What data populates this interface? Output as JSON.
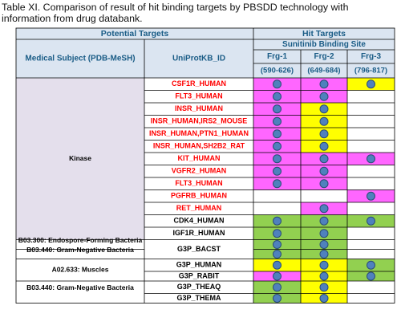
{
  "caption": "Table XI. Comparison of result of hit binding targets by PBSDD technology with information from drug databank.",
  "headers": {
    "potential_targets": "Potential Targets",
    "hit_targets": "Hit Targets",
    "medical_subject": "Medical Subject (PDB-MeSH)",
    "uniprot_id": "UniProtKB_ID",
    "binding_site": "Sunitinib Binding Site",
    "fragments": [
      {
        "name": "Frg-1",
        "range": "(590-626)"
      },
      {
        "name": "Frg-2",
        "range": "(649-684)"
      },
      {
        "name": "Frg-3",
        "range": "(796-817)"
      }
    ]
  },
  "colors": {
    "header_bg": "#dbe5f1",
    "kinase_group_bg": "#e4dfec",
    "red_text": "#ff0000",
    "black_text": "#000000",
    "magenta": "#ff66ff",
    "yellow": "#ffff00",
    "green": "#92d050",
    "blue_dot": "#4f81bd",
    "header_text": "#1a5c86"
  },
  "groups": [
    {
      "label": "Kinase",
      "row_span": 13,
      "shaded": true
    },
    {
      "label": "B03.300: Endospore-Forming Bacteria",
      "row_span": 1,
      "shaded": false
    },
    {
      "label": "B03.440: Gram-Negative Bacteria",
      "row_span": 1,
      "shaded": false
    },
    {
      "label": "A02.633: Muscles",
      "row_span": 2,
      "shaded": false
    },
    {
      "label": "B03.440: Gram-Negative Bacteria",
      "row_span": 2,
      "shaded": false
    }
  ],
  "rows": [
    {
      "id": "CSF1R_HUMAN",
      "text_color": "red",
      "frg": [
        {
          "fill": "magenta",
          "dot": true
        },
        {
          "fill": "magenta",
          "dot": true
        },
        {
          "fill": "yellow",
          "dot": true
        }
      ]
    },
    {
      "id": "FLT3_HUMAN",
      "text_color": "red",
      "frg": [
        {
          "fill": "magenta",
          "dot": true
        },
        {
          "fill": "magenta",
          "dot": true
        },
        {
          "fill": "none",
          "dot": false
        }
      ]
    },
    {
      "id": "INSR_HUMAN",
      "text_color": "red",
      "frg": [
        {
          "fill": "magenta",
          "dot": true
        },
        {
          "fill": "yellow",
          "dot": true
        },
        {
          "fill": "none",
          "dot": false
        }
      ]
    },
    {
      "id": "INSR_HUMAN,IRS2_MOUSE",
      "text_color": "red",
      "frg": [
        {
          "fill": "magenta",
          "dot": true
        },
        {
          "fill": "yellow",
          "dot": true
        },
        {
          "fill": "none",
          "dot": false
        }
      ]
    },
    {
      "id": "INSR_HUMAN,PTN1_HUMAN",
      "text_color": "red",
      "frg": [
        {
          "fill": "magenta",
          "dot": true
        },
        {
          "fill": "yellow",
          "dot": true
        },
        {
          "fill": "none",
          "dot": false
        }
      ]
    },
    {
      "id": "INSR_HUMAN,SH2B2_RAT",
      "text_color": "red",
      "frg": [
        {
          "fill": "magenta",
          "dot": true
        },
        {
          "fill": "yellow",
          "dot": true
        },
        {
          "fill": "none",
          "dot": false
        }
      ]
    },
    {
      "id": "KIT_HUMAN",
      "text_color": "red",
      "frg": [
        {
          "fill": "magenta",
          "dot": true
        },
        {
          "fill": "magenta",
          "dot": true
        },
        {
          "fill": "magenta",
          "dot": true
        }
      ]
    },
    {
      "id": "VGFR2_HUMAN",
      "text_color": "red",
      "frg": [
        {
          "fill": "magenta",
          "dot": true
        },
        {
          "fill": "magenta",
          "dot": true
        },
        {
          "fill": "none",
          "dot": false
        }
      ]
    },
    {
      "id": "FLT3_HUMAN",
      "text_color": "red",
      "frg": [
        {
          "fill": "magenta",
          "dot": true
        },
        {
          "fill": "magenta",
          "dot": true
        },
        {
          "fill": "none",
          "dot": false
        }
      ]
    },
    {
      "id": "PGFRB_HUMAN",
      "text_color": "red",
      "frg": [
        {
          "fill": "none",
          "dot": false
        },
        {
          "fill": "none",
          "dot": false
        },
        {
          "fill": "magenta",
          "dot": true
        }
      ]
    },
    {
      "id": "RET_HUMAN",
      "text_color": "red",
      "frg": [
        {
          "fill": "none",
          "dot": false
        },
        {
          "fill": "magenta",
          "dot": true
        },
        {
          "fill": "none",
          "dot": false
        }
      ]
    },
    {
      "id": "CDK4_HUMAN",
      "text_color": "black",
      "frg": [
        {
          "fill": "green",
          "dot": true
        },
        {
          "fill": "green",
          "dot": true
        },
        {
          "fill": "green",
          "dot": true
        }
      ]
    },
    {
      "id": "IGF1R_HUMAN",
      "text_color": "black",
      "frg": [
        {
          "fill": "green",
          "dot": true
        },
        {
          "fill": "green",
          "dot": true
        },
        {
          "fill": "none",
          "dot": false
        }
      ]
    },
    {
      "id": "G3P_BACST",
      "text_color": "black",
      "frg": [
        {
          "fill": "green",
          "dot": true
        },
        {
          "fill": "green",
          "dot": true
        },
        {
          "fill": "none",
          "dot": false
        }
      ]
    },
    {
      "id": "G3P_BACST",
      "text_color": "black",
      "frg": [
        {
          "fill": "green",
          "dot": true
        },
        {
          "fill": "green",
          "dot": true
        },
        {
          "fill": "none",
          "dot": false
        }
      ]
    },
    {
      "id": "G3P_HUMAN",
      "text_color": "black",
      "frg": [
        {
          "fill": "yellow",
          "dot": true
        },
        {
          "fill": "yellow",
          "dot": true
        },
        {
          "fill": "green",
          "dot": true
        }
      ]
    },
    {
      "id": "G3P_RABIT",
      "text_color": "black",
      "frg": [
        {
          "fill": "magenta",
          "dot": true
        },
        {
          "fill": "yellow",
          "dot": true
        },
        {
          "fill": "green",
          "dot": true
        }
      ]
    },
    {
      "id": "G3P_THEAQ",
      "text_color": "black",
      "frg": [
        {
          "fill": "green",
          "dot": true
        },
        {
          "fill": "yellow",
          "dot": true
        },
        {
          "fill": "none",
          "dot": false
        }
      ]
    },
    {
      "id": "G3P_THEMA",
      "text_color": "black",
      "frg": [
        {
          "fill": "green",
          "dot": true
        },
        {
          "fill": "yellow",
          "dot": true
        },
        {
          "fill": "none",
          "dot": false
        }
      ]
    }
  ],
  "merged_id_rows": [
    {
      "start": 13,
      "span": 2,
      "id": "G3P_BACST"
    }
  ]
}
